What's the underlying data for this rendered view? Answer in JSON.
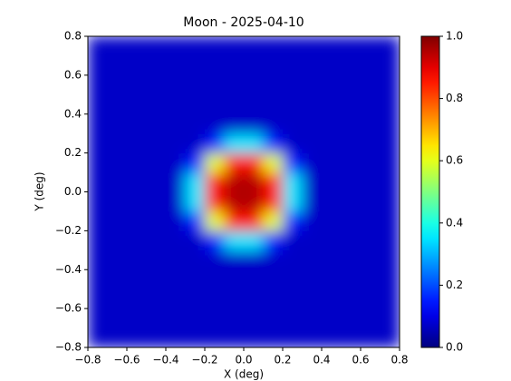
{
  "chart_data": {
    "type": "heatmap",
    "title": "Moon - 2025-04-10",
    "x_label": "X (deg)",
    "y_label": "Y (deg)",
    "colormap": "jet",
    "x": [
      -0.75,
      -0.65,
      -0.55,
      -0.45,
      -0.35,
      -0.25,
      -0.15,
      -0.05,
      0.05,
      0.15,
      0.25,
      0.35,
      0.45,
      0.55,
      0.65,
      0.75
    ],
    "y": [
      -0.75,
      -0.65,
      -0.55,
      -0.45,
      -0.35,
      -0.25,
      -0.15,
      -0.05,
      0.05,
      0.15,
      0.25,
      0.35,
      0.45,
      0.55,
      0.65,
      0.75
    ],
    "z": [
      [
        0.07,
        0.07,
        0.07,
        0.07,
        0.07,
        0.07,
        0.07,
        0.07,
        0.07,
        0.07,
        0.07,
        0.07,
        0.07,
        0.07,
        0.07,
        0.07
      ],
      [
        0.07,
        0.07,
        0.07,
        0.07,
        0.07,
        0.07,
        0.07,
        0.07,
        0.07,
        0.07,
        0.07,
        0.07,
        0.07,
        0.07,
        0.07,
        0.07
      ],
      [
        0.07,
        0.07,
        0.07,
        0.07,
        0.07,
        0.07,
        0.07,
        0.07,
        0.07,
        0.07,
        0.07,
        0.07,
        0.07,
        0.07,
        0.07,
        0.07
      ],
      [
        0.07,
        0.07,
        0.07,
        0.07,
        0.07,
        0.07,
        0.07,
        0.07,
        0.07,
        0.07,
        0.07,
        0.07,
        0.07,
        0.07,
        0.07,
        0.07
      ],
      [
        0.07,
        0.07,
        0.07,
        0.07,
        0.07,
        0.07,
        0.07,
        0.07,
        0.07,
        0.07,
        0.07,
        0.07,
        0.07,
        0.07,
        0.07,
        0.07
      ],
      [
        0.07,
        0.07,
        0.07,
        0.07,
        0.07,
        0.07,
        0.15,
        0.35,
        0.35,
        0.15,
        0.07,
        0.07,
        0.07,
        0.07,
        0.07,
        0.07
      ],
      [
        0.07,
        0.07,
        0.07,
        0.07,
        0.07,
        0.15,
        0.6,
        0.85,
        0.85,
        0.6,
        0.15,
        0.07,
        0.07,
        0.07,
        0.07,
        0.07
      ],
      [
        0.07,
        0.07,
        0.07,
        0.07,
        0.07,
        0.35,
        0.85,
        0.95,
        0.95,
        0.85,
        0.35,
        0.07,
        0.07,
        0.07,
        0.07,
        0.07
      ],
      [
        0.07,
        0.07,
        0.07,
        0.07,
        0.07,
        0.35,
        0.85,
        0.95,
        0.95,
        0.85,
        0.35,
        0.07,
        0.07,
        0.07,
        0.07,
        0.07
      ],
      [
        0.07,
        0.07,
        0.07,
        0.07,
        0.07,
        0.15,
        0.6,
        0.85,
        0.85,
        0.6,
        0.15,
        0.07,
        0.07,
        0.07,
        0.07,
        0.07
      ],
      [
        0.07,
        0.07,
        0.07,
        0.07,
        0.07,
        0.07,
        0.15,
        0.35,
        0.35,
        0.15,
        0.07,
        0.07,
        0.07,
        0.07,
        0.07,
        0.07
      ],
      [
        0.07,
        0.07,
        0.07,
        0.07,
        0.07,
        0.07,
        0.07,
        0.07,
        0.07,
        0.07,
        0.07,
        0.07,
        0.07,
        0.07,
        0.07,
        0.07
      ],
      [
        0.07,
        0.07,
        0.07,
        0.07,
        0.07,
        0.07,
        0.07,
        0.07,
        0.07,
        0.07,
        0.07,
        0.07,
        0.07,
        0.07,
        0.07,
        0.07
      ],
      [
        0.07,
        0.07,
        0.07,
        0.07,
        0.07,
        0.07,
        0.07,
        0.07,
        0.07,
        0.07,
        0.07,
        0.07,
        0.07,
        0.07,
        0.07,
        0.07
      ],
      [
        0.07,
        0.07,
        0.07,
        0.07,
        0.07,
        0.07,
        0.07,
        0.07,
        0.07,
        0.07,
        0.07,
        0.07,
        0.07,
        0.07,
        0.07,
        0.07
      ],
      [
        0.07,
        0.07,
        0.07,
        0.07,
        0.07,
        0.07,
        0.07,
        0.07,
        0.07,
        0.07,
        0.07,
        0.07,
        0.07,
        0.07,
        0.07,
        0.07
      ]
    ],
    "xlim": [
      -0.8,
      0.8
    ],
    "ylim": [
      -0.8,
      0.8
    ],
    "xticks": [
      {
        "value": -0.8,
        "label": "−0.8"
      },
      {
        "value": -0.6,
        "label": "−0.6"
      },
      {
        "value": -0.4,
        "label": "−0.4"
      },
      {
        "value": -0.2,
        "label": "−0.2"
      },
      {
        "value": 0,
        "label": "0.0"
      },
      0.2,
      0.4,
      0.6,
      0.8
    ],
    "yticks": [
      {
        "value": -0.8,
        "label": "−0.8"
      },
      {
        "value": -0.6,
        "label": "−0.6"
      },
      {
        "value": -0.4,
        "label": "−0.4"
      },
      {
        "value": -0.2,
        "label": "−0.2"
      },
      {
        "value": 0,
        "label": "0.0"
      },
      0.2,
      0.4,
      0.6,
      0.8
    ],
    "clim": [
      0,
      1
    ],
    "cticks": [
      {
        "value": 0,
        "label": "0.0"
      },
      0.2,
      0.4,
      0.6,
      0.8,
      {
        "value": 1,
        "label": "1.0"
      }
    ]
  }
}
